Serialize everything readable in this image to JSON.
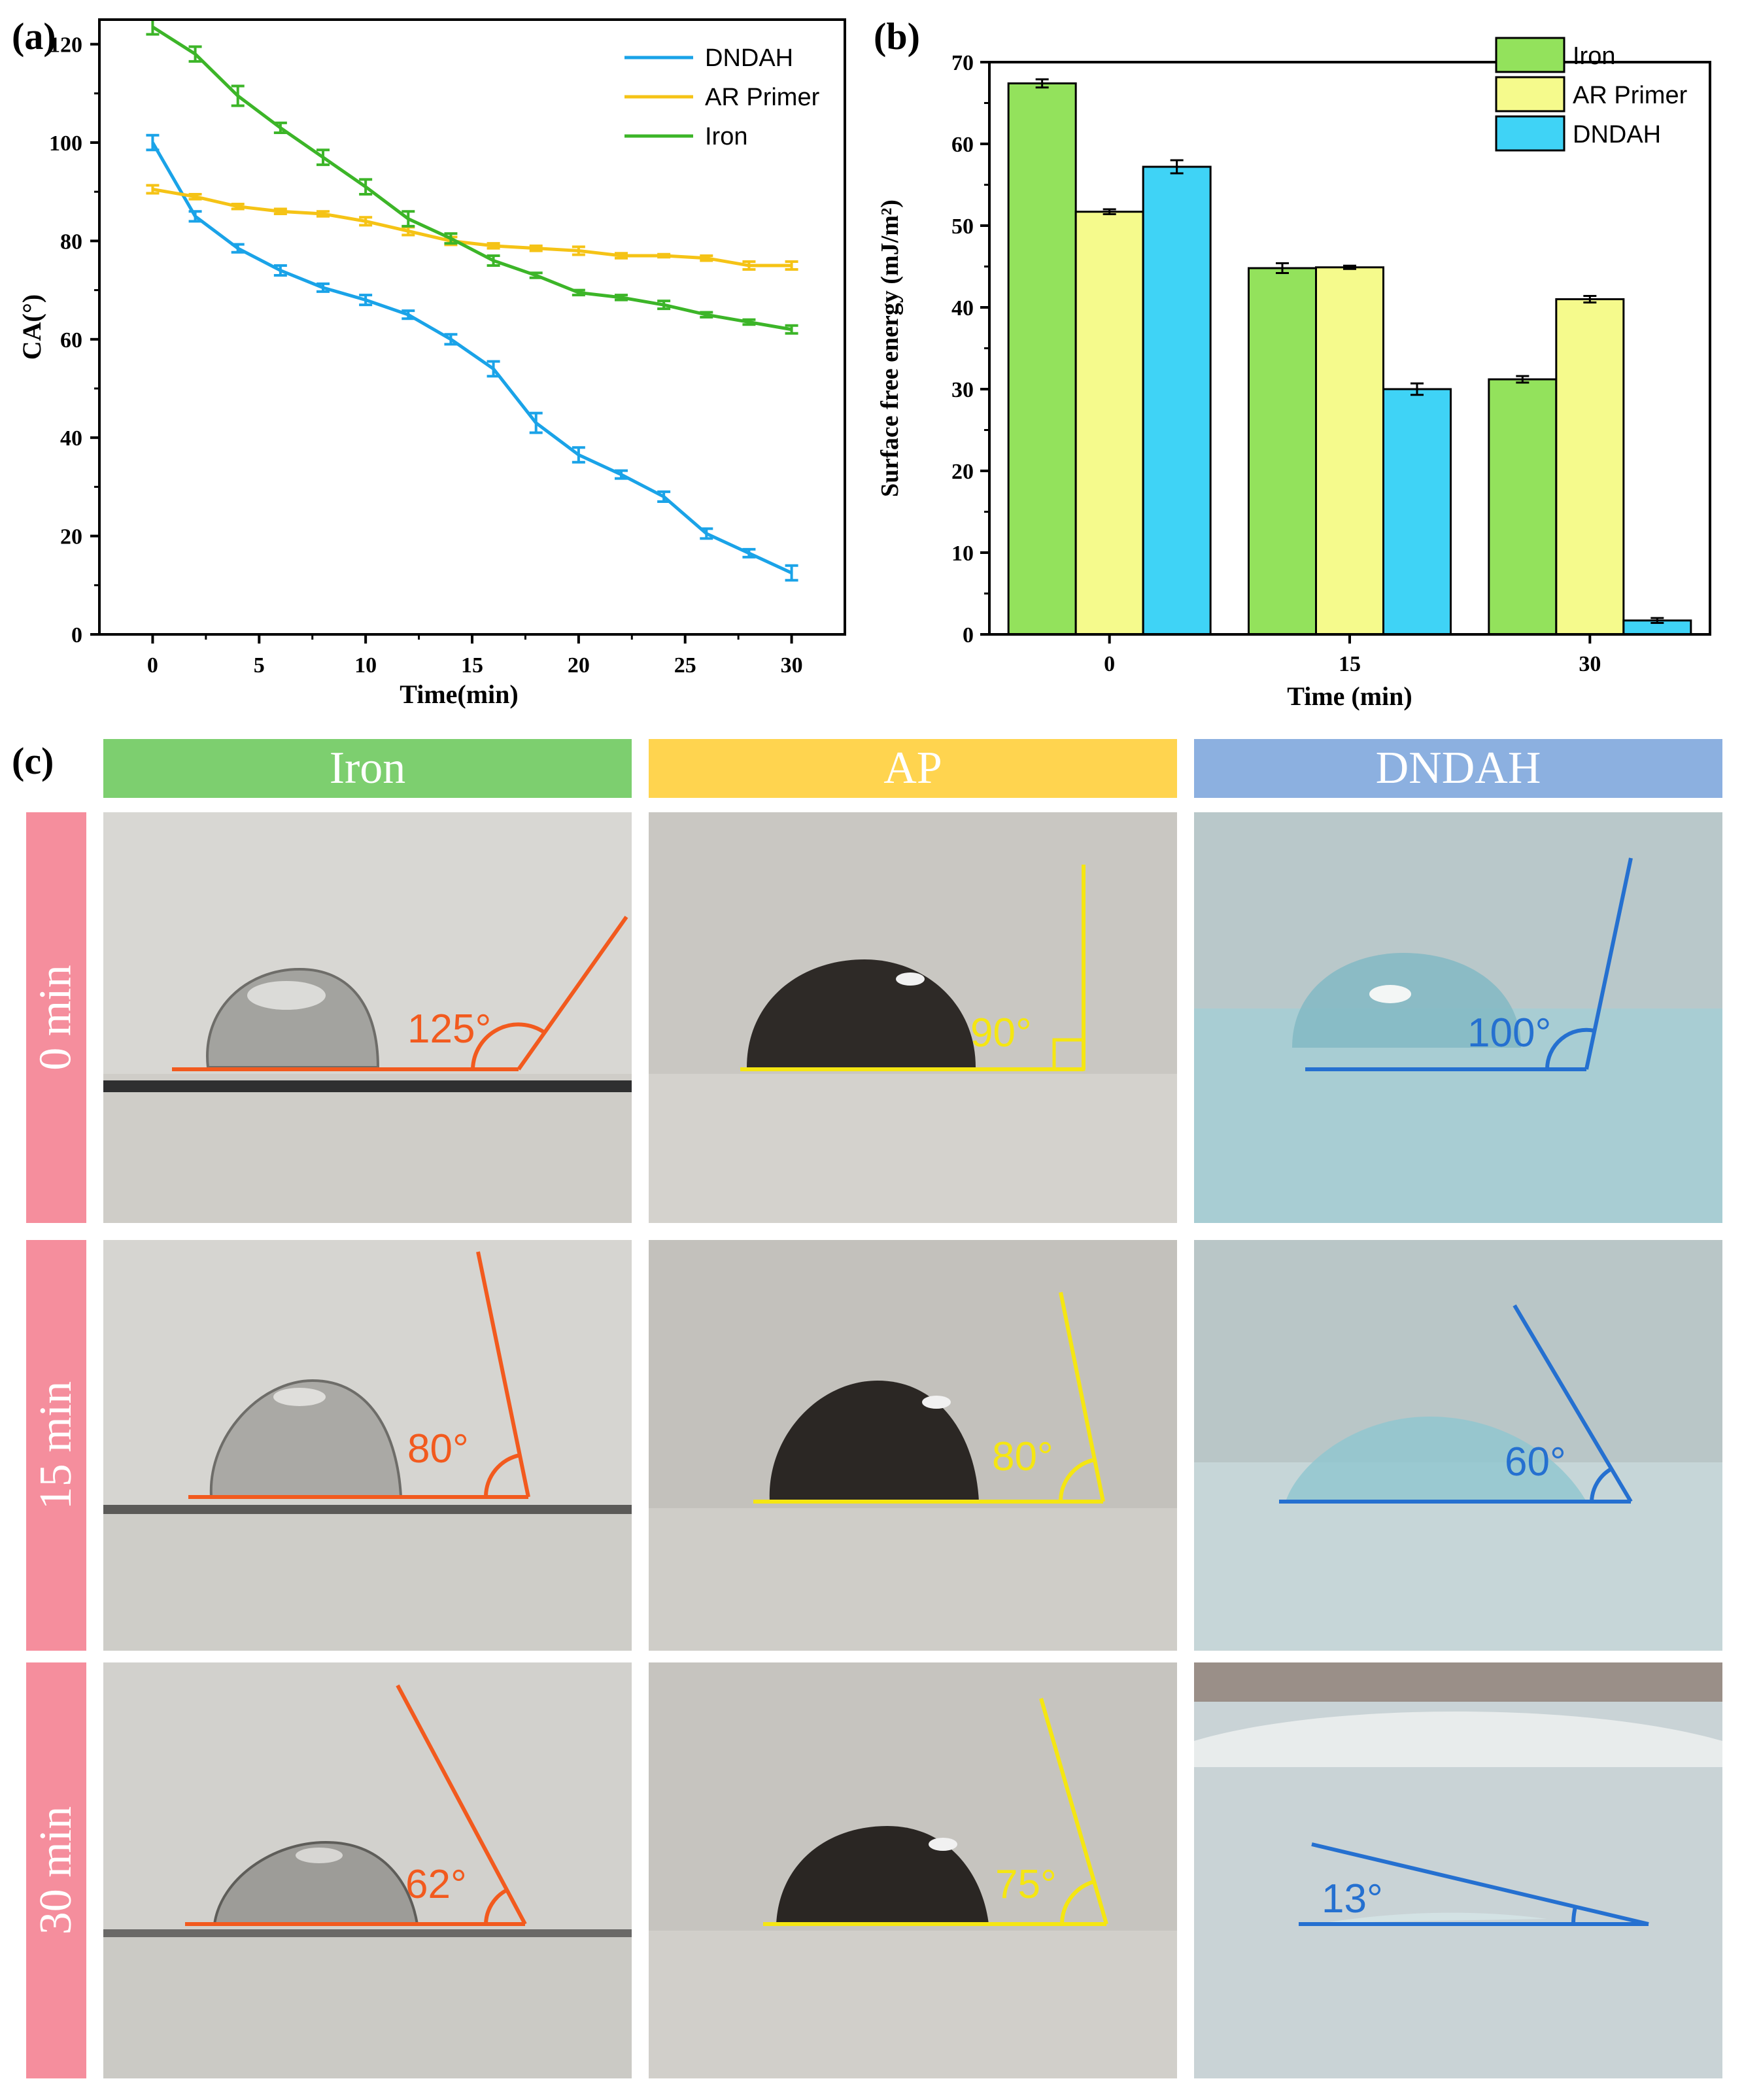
{
  "chart_data": [
    {
      "panel": "(a)",
      "type": "line",
      "xlabel": "Time(min)",
      "ylabel": "CA(°)",
      "xlim": [
        -2.5,
        32.5
      ],
      "ylim": [
        0,
        125
      ],
      "xticks": [
        0,
        5,
        10,
        15,
        20,
        25,
        30
      ],
      "yticks": [
        0,
        20,
        40,
        60,
        80,
        100,
        120
      ],
      "legend_position": "top-right",
      "x": [
        0,
        2,
        4,
        6,
        8,
        10,
        12,
        14,
        16,
        18,
        20,
        22,
        24,
        26,
        28,
        30
      ],
      "series": [
        {
          "name": "DNDAH",
          "color": "#1aa3e8",
          "values": [
            100,
            85,
            78.5,
            74,
            70.5,
            68,
            65,
            60,
            54,
            43,
            36.5,
            32.5,
            28,
            20.5,
            16.5,
            12.5
          ],
          "errors": [
            1.5,
            1,
            0.8,
            1,
            0.8,
            1,
            0.8,
            1,
            1.5,
            2,
            1.5,
            0.8,
            1,
            1,
            0.8,
            1.5
          ]
        },
        {
          "name": "AR Primer",
          "color": "#f5c316",
          "values": [
            90.5,
            89,
            87,
            86,
            85.5,
            84,
            82,
            80,
            79,
            78.5,
            78,
            77,
            77,
            76.5,
            75,
            75
          ],
          "errors": [
            0.8,
            0.5,
            0.5,
            0.5,
            0.5,
            0.8,
            0.8,
            0.8,
            0.5,
            0.5,
            0.8,
            0.5,
            0.3,
            0.5,
            0.8,
            0.8
          ]
        },
        {
          "name": "Iron",
          "color": "#3cb528",
          "values": [
            123.5,
            118,
            109.5,
            103,
            97,
            91,
            84.5,
            80.5,
            76,
            73,
            69.5,
            68.5,
            67,
            65,
            63.5,
            62
          ],
          "errors": [
            1.5,
            1.5,
            2,
            1,
            1.5,
            1.5,
            1.5,
            1,
            1,
            0.5,
            0.5,
            0.5,
            0.8,
            0.5,
            0.5,
            0.8
          ]
        }
      ]
    },
    {
      "panel": "(b)",
      "type": "bar",
      "xlabel": "Time (min)",
      "ylabel": "Surface free energy (mJ/m²)",
      "categories": [
        "0",
        "15",
        "30"
      ],
      "ylim": [
        0,
        70
      ],
      "yticks": [
        0,
        10,
        20,
        30,
        40,
        50,
        60,
        70
      ],
      "legend_position": "top-right",
      "series": [
        {
          "name": "Iron",
          "color": "#93e25c",
          "values": [
            67.4,
            44.8,
            31.2
          ],
          "errors": [
            0.5,
            0.6,
            0.4
          ]
        },
        {
          "name": "AR Primer",
          "color": "#f5fa8c",
          "values": [
            51.7,
            44.9,
            41
          ],
          "errors": [
            0.3,
            0.2,
            0.4
          ]
        },
        {
          "name": "DNDAH",
          "color": "#3fd3f6",
          "values": [
            57.2,
            30,
            1.7
          ],
          "errors": [
            0.8,
            0.7,
            0.3
          ]
        }
      ]
    }
  ],
  "panel_c": {
    "label": "(c)",
    "columns": [
      {
        "label": "Iron",
        "color": "#7dcf6f"
      },
      {
        "label": "AP",
        "color": "#ffd44f"
      },
      {
        "label": "DNDAH",
        "color": "#8cb0e0"
      }
    ],
    "rows": [
      {
        "label": "0 min"
      },
      {
        "label": "15 min"
      },
      {
        "label": "30 min"
      }
    ],
    "row_color": "#f58e9d",
    "angles": [
      [
        "125°",
        "90°",
        "100°"
      ],
      [
        "80°",
        "80°",
        "60°"
      ],
      [
        "62°",
        "75°",
        "13°"
      ]
    ],
    "angle_values": [
      [
        125,
        90,
        100
      ],
      [
        80,
        80,
        60
      ],
      [
        62,
        75,
        13
      ]
    ],
    "line_colors": [
      "#f25a1e",
      "#f5e612",
      "#2570d0"
    ]
  }
}
